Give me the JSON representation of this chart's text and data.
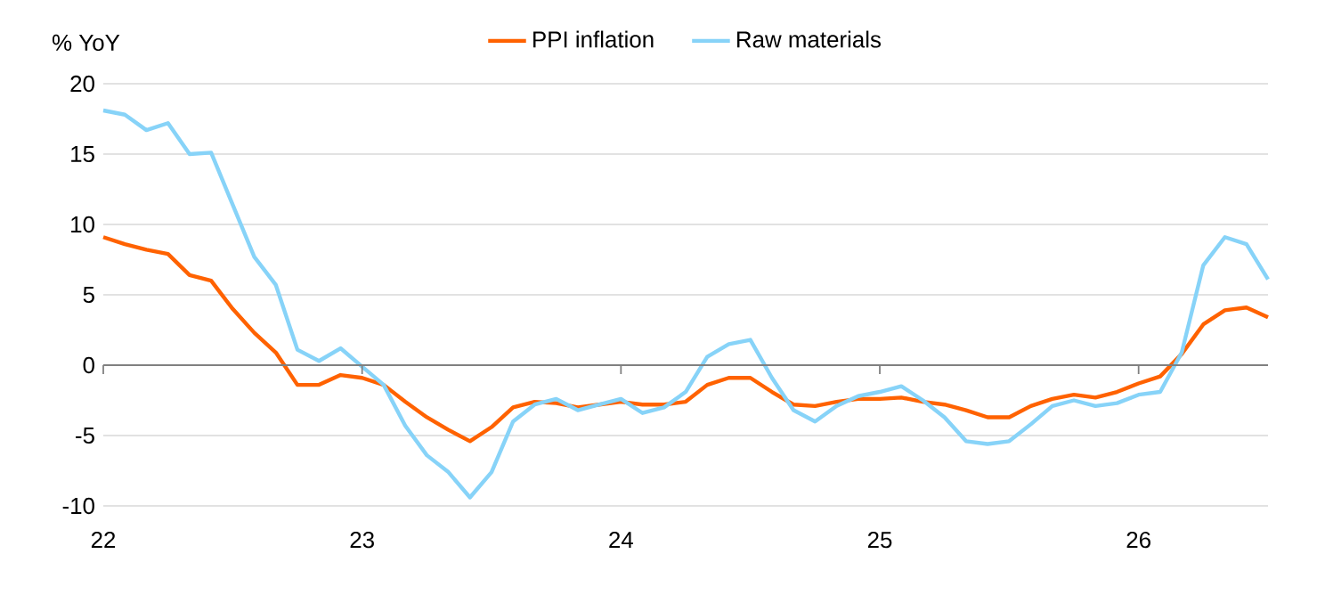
{
  "chart_data": {
    "type": "line",
    "ylabel": "% YoY",
    "x": [
      "2022-01",
      "2022-02",
      "2022-03",
      "2022-04",
      "2022-05",
      "2022-06",
      "2022-07",
      "2022-08",
      "2022-09",
      "2022-10",
      "2022-11",
      "2022-12",
      "2023-01",
      "2023-02",
      "2023-03",
      "2023-04",
      "2023-05",
      "2023-06",
      "2023-07",
      "2023-08",
      "2023-09",
      "2023-10",
      "2023-11",
      "2023-12",
      "2024-01",
      "2024-02",
      "2024-03",
      "2024-04",
      "2024-05",
      "2024-06",
      "2024-07",
      "2024-08",
      "2024-09",
      "2024-10",
      "2024-11",
      "2024-12",
      "2025-01",
      "2025-02",
      "2025-03",
      "2025-04",
      "2025-05",
      "2025-06",
      "2025-07",
      "2025-08",
      "2025-09",
      "2025-10",
      "2025-11",
      "2025-12",
      "2026-01",
      "2026-02",
      "2026-03",
      "2026-04",
      "2026-05",
      "2026-06",
      "2026-07"
    ],
    "series": [
      {
        "name": "PPI inflation",
        "color": "#ff6200",
        "values": [
          9.1,
          8.6,
          8.2,
          7.9,
          6.4,
          6.0,
          4.0,
          2.3,
          0.9,
          -1.4,
          -1.4,
          -0.7,
          -0.9,
          -1.4,
          -2.6,
          -3.7,
          -4.6,
          -5.4,
          -4.4,
          -3.0,
          -2.6,
          -2.7,
          -3.0,
          -2.8,
          -2.6,
          -2.8,
          -2.8,
          -2.6,
          -1.4,
          -0.9,
          -0.9,
          -1.9,
          -2.8,
          -2.9,
          -2.6,
          -2.4,
          -2.4,
          -2.3,
          -2.6,
          -2.8,
          -3.2,
          -3.7,
          -3.7,
          -2.9,
          -2.4,
          -2.1,
          -2.3,
          -1.9,
          -1.3,
          -0.8,
          0.8,
          2.9,
          3.9,
          4.1,
          3.4
        ]
      },
      {
        "name": "Raw materials",
        "color": "#87d3f8",
        "values": [
          18.1,
          17.8,
          16.7,
          17.2,
          15.0,
          15.1,
          11.4,
          7.7,
          5.7,
          1.1,
          0.3,
          1.2,
          -0.1,
          -1.4,
          -4.3,
          -6.4,
          -7.6,
          -9.4,
          -7.6,
          -4.0,
          -2.8,
          -2.4,
          -3.2,
          -2.8,
          -2.4,
          -3.4,
          -3.0,
          -1.9,
          0.6,
          1.5,
          1.8,
          -0.9,
          -3.2,
          -4.0,
          -2.9,
          -2.2,
          -1.9,
          -1.5,
          -2.5,
          -3.7,
          -5.4,
          -5.6,
          -5.4,
          -4.2,
          -2.9,
          -2.5,
          -2.9,
          -2.7,
          -2.1,
          -1.9,
          0.9,
          7.1,
          9.1,
          8.6,
          6.1
        ]
      }
    ],
    "xlim": [
      "2022-01",
      "2026-07"
    ],
    "xticks": [
      {
        "value": "2022-01",
        "label": "22"
      },
      {
        "value": "2023-01",
        "label": "23"
      },
      {
        "value": "2024-01",
        "label": "24"
      },
      {
        "value": "2025-01",
        "label": "25"
      },
      {
        "value": "2026-01",
        "label": "26"
      }
    ],
    "ylim": [
      -10,
      20
    ],
    "yticks": [
      -10,
      -5,
      0,
      5,
      10,
      15,
      20
    ],
    "ref_lines": [
      {
        "axis": "y",
        "value": 0,
        "color": "#808080"
      }
    ],
    "grid": "y",
    "legend": "top",
    "marker": "none",
    "line_style": "solid"
  }
}
